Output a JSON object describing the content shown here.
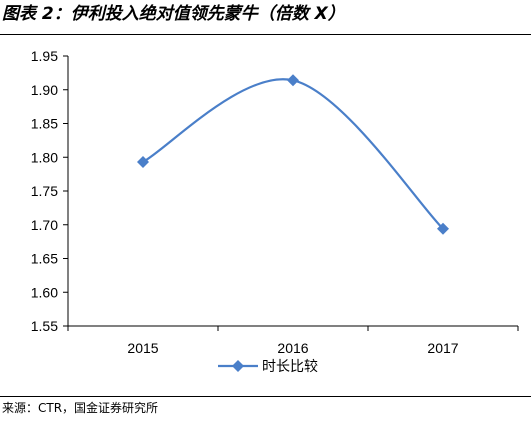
{
  "title": "图表 2：伊利投入绝对值领先蒙牛（倍数 X）",
  "source": "来源：CTR，国金证券研究所",
  "colors": {
    "series": "#4A7FC9",
    "axis": "#000000"
  },
  "chart_data": {
    "type": "line",
    "categories": [
      "2015",
      "2016",
      "2017"
    ],
    "series": [
      {
        "name": "时长比较",
        "values": [
          1.793,
          1.914,
          1.694
        ]
      }
    ],
    "ylim": [
      1.55,
      1.95
    ],
    "yticks": [
      "1.55",
      "1.60",
      "1.65",
      "1.70",
      "1.75",
      "1.80",
      "1.85",
      "1.90",
      "1.95"
    ],
    "grid": false,
    "legend": "bottom",
    "marker": "diamond",
    "smooth": true
  }
}
